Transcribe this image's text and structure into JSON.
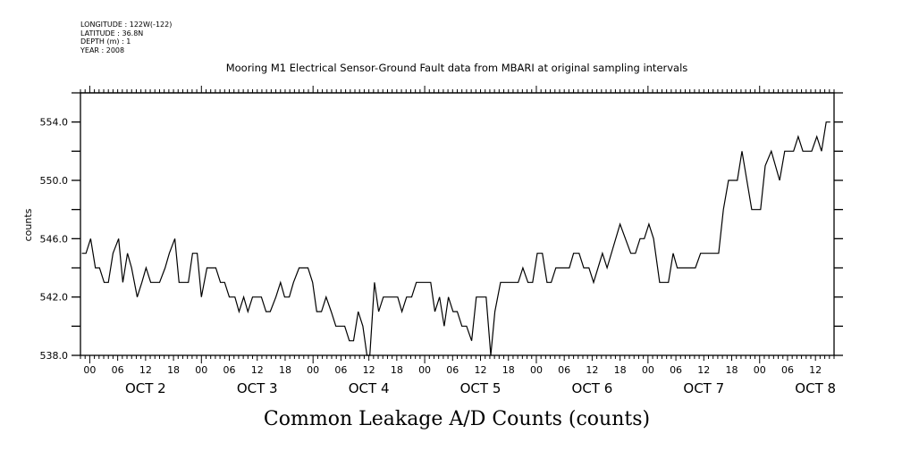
{
  "header": {
    "longitude": "LONGITUDE : 122W(-122)",
    "latitude": "LATITUDE : 36.8N",
    "depth": "DEPTH (m) : 1",
    "year": "YEAR : 2008"
  },
  "chart_data": {
    "type": "line",
    "title": "Mooring M1 Electrical Sensor-Ground Fault data from MBARI at original sampling intervals",
    "xlabel": "Common Leakage A/D Counts (counts)",
    "ylabel": "counts",
    "x_units": "hours since OCT 2 00:00",
    "xlim": [
      -2,
      160
    ],
    "ylim": [
      538,
      556
    ],
    "y_tick_labels": [
      "538.0",
      "542.0",
      "546.0",
      "550.0",
      "554.0"
    ],
    "y_tick_values": [
      538,
      542,
      546,
      550,
      554
    ],
    "x_tick_labels": [
      "00",
      "06",
      "12",
      "18",
      "00",
      "06",
      "12",
      "18",
      "00",
      "06",
      "12",
      "18",
      "00",
      "06",
      "12",
      "18",
      "00",
      "06",
      "12",
      "18",
      "00",
      "06",
      "12",
      "18",
      "00",
      "06",
      "12"
    ],
    "day_labels": [
      "OCT  2",
      "OCT  3",
      "OCT  4",
      "OCT  5",
      "OCT  6",
      "OCT  7",
      "OCT  8"
    ],
    "grid": false,
    "color": "#000000",
    "x": [
      -1.7,
      -0.8,
      0.2,
      1.2,
      2.1,
      3.1,
      4.0,
      5.0,
      6.2,
      7.1,
      8.1,
      9.0,
      10.2,
      11.2,
      12.1,
      13.1,
      15.0,
      16.2,
      17.1,
      18.3,
      19.2,
      21.2,
      22.1,
      23.1,
      24.0,
      25.2,
      27.1,
      28.1,
      29.0,
      30.0,
      31.2,
      32.1,
      33.1,
      34.0,
      35.0,
      36.9,
      37.9,
      38.8,
      40.0,
      41.0,
      41.9,
      42.9,
      43.8,
      45.0,
      46.9,
      47.9,
      48.8,
      49.8,
      50.8,
      51.9,
      52.9,
      54.8,
      55.8,
      56.7,
      57.7,
      58.7,
      59.6,
      60.2,
      61.2,
      62.1,
      63.1,
      66.2,
      67.1,
      68.1,
      69.2,
      70.2,
      73.3,
      74.2,
      75.2,
      76.2,
      77.1,
      78.1,
      79.0,
      80.0,
      81.0,
      82.1,
      83.1,
      85.2,
      86.2,
      87.1,
      88.3,
      92.1,
      93.1,
      94.2,
      95.2,
      96.2,
      97.3,
      98.3,
      99.2,
      100.2,
      103.1,
      104.0,
      105.2,
      106.2,
      107.3,
      108.3,
      110.2,
      111.2,
      114.0,
      116.3,
      117.3,
      118.3,
      119.2,
      120.2,
      121.2,
      122.5,
      124.4,
      125.4,
      126.3,
      130.2,
      131.3,
      135.2,
      136.2,
      137.3,
      139.2,
      140.2,
      142.3,
      144.2,
      145.2,
      146.5,
      148.3,
      149.4,
      151.3,
      152.3,
      153.3,
      155.2,
      156.3,
      157.3,
      158.3,
      159.2
    ],
    "y": [
      545,
      545,
      546,
      544,
      544,
      543,
      543,
      545,
      546,
      543,
      545,
      544,
      542,
      543,
      544,
      543,
      543,
      544,
      545,
      546,
      543,
      543,
      545,
      545,
      542,
      544,
      544,
      543,
      543,
      542,
      542,
      541,
      542,
      541,
      542,
      542,
      541,
      541,
      542,
      543,
      542,
      542,
      543,
      544,
      544,
      543,
      541,
      541,
      542,
      541,
      540,
      540,
      539,
      539,
      541,
      540,
      538,
      538,
      543,
      541,
      542,
      542,
      541,
      542,
      542,
      543,
      543,
      541,
      542,
      540,
      542,
      541,
      541,
      540,
      540,
      539,
      542,
      542,
      538,
      541,
      543,
      543,
      544,
      543,
      543,
      545,
      545,
      543,
      543,
      544,
      544,
      545,
      545,
      544,
      544,
      543,
      545,
      544,
      547,
      545,
      545,
      546,
      546,
      547,
      546,
      543,
      543,
      545,
      544,
      544,
      545,
      545,
      548,
      550,
      550,
      552,
      548,
      548,
      551,
      552,
      550,
      552,
      552,
      553,
      552,
      552,
      553,
      552,
      554,
      554
    ]
  }
}
